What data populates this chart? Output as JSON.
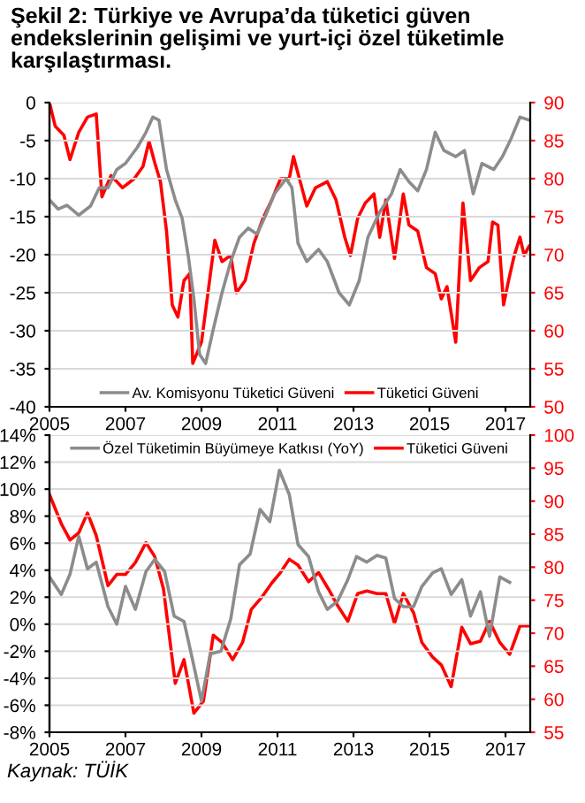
{
  "chart_data": [
    {
      "type": "line",
      "title": "Şekil 2: Türkiye ve Avrupa’da tüketici güven endekslerinin gelişimi ve yurt-içi özel tüketimle karşılaştırması.",
      "xlim": [
        2005,
        2017.65
      ],
      "xticks": [
        2005,
        2007,
        2009,
        2011,
        2013,
        2015,
        2017
      ],
      "ylim": [
        -40,
        0
      ],
      "yticks": [
        -40,
        -35,
        -30,
        -25,
        -20,
        -15,
        -10,
        -5,
        0
      ],
      "y2lim": [
        50,
        90
      ],
      "y2ticks": [
        50,
        55,
        60,
        65,
        70,
        75,
        80,
        85,
        90
      ],
      "grid": "y",
      "legend": "bottom",
      "marker": "none",
      "line_style": "solid",
      "series": [
        {
          "name": "Av. Komisyonu Tüketici Güveni",
          "color": "#8c8c8c",
          "axis": "y",
          "x": [
            2005.0,
            2005.23,
            2005.46,
            2005.77,
            2006.08,
            2006.31,
            2006.54,
            2006.77,
            2007.0,
            2007.31,
            2007.54,
            2007.72,
            2007.88,
            2008.08,
            2008.31,
            2008.49,
            2008.65,
            2008.8,
            2008.95,
            2009.11,
            2009.31,
            2009.54,
            2009.77,
            2010.0,
            2010.23,
            2010.46,
            2010.69,
            2010.92,
            2011.23,
            2011.38,
            2011.54,
            2011.77,
            2012.08,
            2012.31,
            2012.62,
            2012.89,
            2013.15,
            2013.38,
            2013.69,
            2014.0,
            2014.23,
            2014.46,
            2014.69,
            2014.92,
            2015.15,
            2015.38,
            2015.69,
            2015.92,
            2016.15,
            2016.38,
            2016.69,
            2016.92,
            2017.15,
            2017.38,
            2017.62
          ],
          "values": [
            -12.8,
            -14.0,
            -13.5,
            -14.8,
            -13.6,
            -11.2,
            -11.2,
            -8.8,
            -8.0,
            -5.9,
            -3.9,
            -1.9,
            -2.3,
            -8.8,
            -12.8,
            -15.2,
            -20.1,
            -25.8,
            -33.1,
            -34.3,
            -29.8,
            -25.0,
            -20.9,
            -17.7,
            -16.5,
            -17.3,
            -14.8,
            -12.0,
            -10.0,
            -11.2,
            -18.5,
            -20.9,
            -19.3,
            -20.9,
            -25.0,
            -26.6,
            -23.4,
            -17.7,
            -14.4,
            -12.0,
            -8.8,
            -10.4,
            -11.6,
            -8.8,
            -3.9,
            -6.3,
            -7.1,
            -6.3,
            -12.0,
            -8.0,
            -8.8,
            -7.1,
            -4.7,
            -1.9,
            -2.3
          ]
        },
        {
          "name": "Tüketici Güveni",
          "color": "#ff0000",
          "axis": "y2",
          "x": [
            2005.0,
            2005.15,
            2005.38,
            2005.54,
            2005.77,
            2006.0,
            2006.23,
            2006.38,
            2006.62,
            2006.92,
            2007.23,
            2007.46,
            2007.62,
            2007.77,
            2007.92,
            2008.08,
            2008.23,
            2008.38,
            2008.54,
            2008.69,
            2008.77,
            2009.0,
            2009.15,
            2009.35,
            2009.54,
            2009.77,
            2009.92,
            2010.15,
            2010.38,
            2010.62,
            2010.85,
            2011.08,
            2011.31,
            2011.42,
            2011.62,
            2011.77,
            2012.0,
            2012.31,
            2012.54,
            2012.77,
            2012.92,
            2013.11,
            2013.31,
            2013.54,
            2013.69,
            2013.85,
            2014.08,
            2014.31,
            2014.46,
            2014.69,
            2014.92,
            2015.15,
            2015.31,
            2015.46,
            2015.69,
            2015.88,
            2016.08,
            2016.31,
            2016.54,
            2016.66,
            2016.8,
            2016.95,
            2017.08,
            2017.23,
            2017.38,
            2017.49,
            2017.62
          ],
          "values": [
            90,
            86.9,
            85.7,
            82.5,
            86.1,
            88.1,
            88.5,
            77.6,
            80.4,
            78.8,
            80.0,
            81.6,
            84.9,
            82.1,
            79.6,
            73.1,
            63.4,
            61.8,
            66.6,
            67.5,
            55.7,
            58.5,
            64.2,
            71.9,
            69.1,
            69.9,
            65.0,
            66.6,
            71.5,
            74.8,
            77.2,
            80.0,
            80.0,
            82.9,
            79.2,
            76.4,
            78.8,
            79.6,
            77.2,
            72.3,
            69.9,
            74.8,
            76.8,
            78.0,
            72.3,
            77.2,
            69.5,
            78.0,
            73.9,
            73.1,
            68.3,
            67.5,
            64.2,
            65.8,
            58.5,
            76.8,
            66.6,
            68.3,
            69.1,
            74.3,
            73.9,
            63.4,
            66.6,
            69.9,
            72.3,
            69.9,
            71.1
          ]
        }
      ]
    },
    {
      "type": "line",
      "xlim": [
        2005,
        2017.65
      ],
      "xticks": [
        2005,
        2007,
        2009,
        2011,
        2013,
        2015,
        2017
      ],
      "ylim": [
        -8,
        14
      ],
      "yticks": [
        {
          "value": -8,
          "label": "-8%"
        },
        {
          "value": -6,
          "label": "-6%"
        },
        {
          "value": -4,
          "label": "-4%"
        },
        {
          "value": -2,
          "label": "-2%"
        },
        {
          "value": 0,
          "label": "0%"
        },
        {
          "value": 2,
          "label": "2%"
        },
        {
          "value": 4,
          "label": "4%"
        },
        {
          "value": 6,
          "label": "6%"
        },
        {
          "value": 8,
          "label": "8%"
        },
        {
          "value": 10,
          "label": "10%"
        },
        {
          "value": 12,
          "label": "12%"
        },
        {
          "value": 14,
          "label": "14%"
        }
      ],
      "y2lim": [
        55,
        100
      ],
      "y2ticks": [
        55,
        60,
        65,
        70,
        75,
        80,
        85,
        90,
        95,
        100
      ],
      "grid": "y",
      "legend": "top",
      "marker": "none",
      "line_style": "solid",
      "annotations": [
        "Kaynak: TÜİK"
      ],
      "series": [
        {
          "name": "Özel Tüketimin Büyümeye Katkısı (YoY)",
          "color": "#8c8c8c",
          "axis": "y",
          "x": [
            2005.0,
            2005.31,
            2005.54,
            2005.77,
            2006.0,
            2006.23,
            2006.54,
            2006.77,
            2007.0,
            2007.26,
            2007.54,
            2007.77,
            2008.03,
            2008.28,
            2008.54,
            2008.77,
            2009.0,
            2009.23,
            2009.51,
            2009.77,
            2010.0,
            2010.28,
            2010.54,
            2010.8,
            2011.05,
            2011.31,
            2011.54,
            2011.82,
            2012.08,
            2012.31,
            2012.58,
            2012.85,
            2013.08,
            2013.35,
            2013.62,
            2013.85,
            2014.08,
            2014.31,
            2014.58,
            2014.8,
            2015.08,
            2015.31,
            2015.57,
            2015.85,
            2016.08,
            2016.34,
            2016.58,
            2016.85,
            2017.11
          ],
          "values": [
            3.5,
            2.2,
            3.7,
            6.5,
            4.1,
            4.6,
            1.3,
            0.0,
            2.8,
            1.1,
            3.9,
            4.8,
            3.9,
            0.6,
            0.2,
            -2.7,
            -5.7,
            -2.2,
            -2.0,
            0.4,
            4.4,
            5.2,
            8.5,
            7.6,
            11.4,
            9.6,
            5.9,
            5.0,
            2.4,
            1.1,
            1.7,
            3.3,
            5.0,
            4.6,
            5.1,
            4.9,
            1.9,
            1.3,
            1.3,
            2.8,
            3.8,
            4.1,
            2.2,
            3.3,
            0.6,
            2.4,
            -0.9,
            3.5,
            3.1
          ]
        },
        {
          "name": "Tüketici Güveni",
          "color": "#ff0000",
          "axis": "y2",
          "x": [
            2005.0,
            2005.31,
            2005.54,
            2005.77,
            2006.0,
            2006.23,
            2006.54,
            2006.77,
            2007.0,
            2007.26,
            2007.54,
            2007.77,
            2008.0,
            2008.31,
            2008.54,
            2008.8,
            2009.05,
            2009.31,
            2009.54,
            2009.82,
            2010.08,
            2010.31,
            2010.58,
            2010.85,
            2011.08,
            2011.31,
            2011.54,
            2011.82,
            2012.08,
            2012.34,
            2012.58,
            2012.85,
            2013.11,
            2013.35,
            2013.62,
            2013.85,
            2014.08,
            2014.31,
            2014.58,
            2014.8,
            2015.08,
            2015.31,
            2015.57,
            2015.85,
            2016.08,
            2016.34,
            2016.58,
            2016.85,
            2017.11,
            2017.38,
            2017.62
          ],
          "values": [
            91.0,
            86.6,
            84.1,
            85.2,
            88.2,
            84.8,
            77.2,
            78.9,
            78.9,
            80.7,
            83.7,
            81.6,
            76.7,
            62.4,
            66.0,
            57.9,
            59.7,
            69.7,
            68.6,
            66.0,
            68.6,
            73.6,
            75.4,
            77.6,
            79.2,
            81.2,
            80.3,
            77.8,
            79.2,
            76.7,
            74.2,
            71.8,
            76.0,
            76.4,
            76.0,
            76.0,
            71.5,
            76.0,
            73.1,
            68.6,
            66.4,
            65.2,
            61.9,
            70.9,
            68.4,
            68.8,
            71.8,
            68.6,
            66.8,
            71.1,
            71.1
          ]
        }
      ]
    }
  ]
}
